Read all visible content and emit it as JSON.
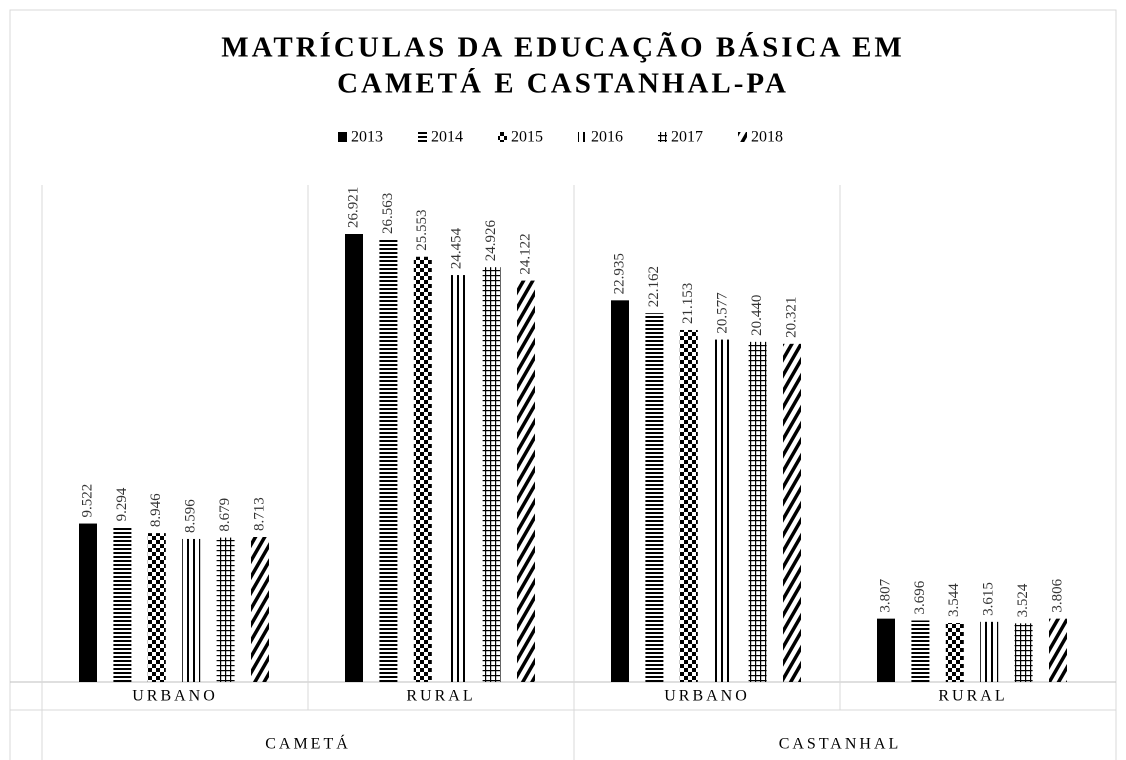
{
  "chart_data": {
    "type": "bar",
    "title": "MATRÍCULAS DA EDUCAÇÃO BÁSICA EM",
    "subtitle": "CAMETÁ E CASTANHAL-PA",
    "groups": [
      {
        "name": "CAMETÁ",
        "categories": [
          "URBANO",
          "RURAL"
        ]
      },
      {
        "name": "CASTANHAL",
        "categories": [
          "URBANO",
          "RURAL"
        ]
      }
    ],
    "series": [
      {
        "name": "2013",
        "color": "#000000",
        "pattern": "solid",
        "values": [
          9522,
          26921,
          22935,
          3807
        ],
        "value_labels": [
          "9.522",
          "26.921",
          "22.935",
          "3.807"
        ]
      },
      {
        "name": "2014",
        "color": "#000000",
        "pattern": "horizontal",
        "values": [
          9294,
          26563,
          22162,
          3696
        ],
        "value_labels": [
          "9.294",
          "26.563",
          "22.162",
          "3.696"
        ]
      },
      {
        "name": "2015",
        "color": "#000000",
        "pattern": "checker",
        "values": [
          8946,
          25553,
          21153,
          3544
        ],
        "value_labels": [
          "8.946",
          "25.553",
          "21.153",
          "3.544"
        ]
      },
      {
        "name": "2016",
        "color": "#000000",
        "pattern": "vertical",
        "values": [
          8596,
          24454,
          20577,
          3615
        ],
        "value_labels": [
          "8.596",
          "24.454",
          "20.577",
          "3.615"
        ]
      },
      {
        "name": "2017",
        "color": "#000000",
        "pattern": "grid",
        "values": [
          8679,
          24926,
          20440,
          3524
        ],
        "value_labels": [
          "8.679",
          "24.926",
          "20.440",
          "3.524"
        ]
      },
      {
        "name": "2018",
        "color": "#000000",
        "pattern": "diagonal",
        "values": [
          8713,
          24122,
          20321,
          3806
        ],
        "value_labels": [
          "8.713",
          "24.122",
          "20.321",
          "3.806"
        ]
      }
    ],
    "legend": "top"
  }
}
